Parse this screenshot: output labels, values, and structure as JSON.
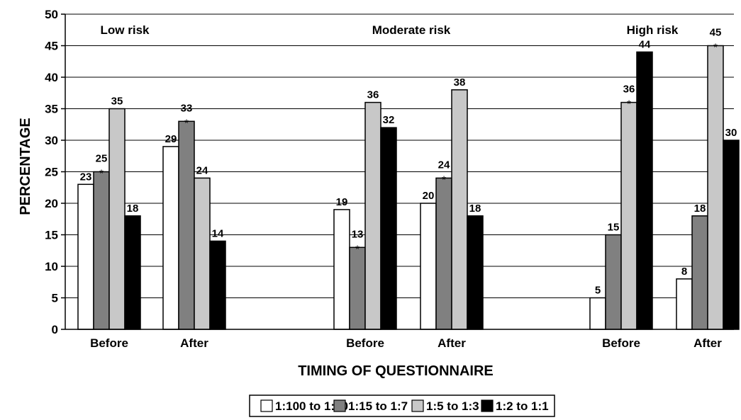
{
  "chart_data": {
    "type": "bar",
    "ylabel": "PERCENTAGE",
    "xlabel": "TIMING OF QUESTIONNAIRE",
    "ylim": [
      0,
      50
    ],
    "yticks": [
      0,
      5,
      10,
      15,
      20,
      25,
      30,
      35,
      40,
      45,
      50
    ],
    "grid": true,
    "legend_position": "bottom",
    "panels": [
      {
        "title": "Low risk",
        "groups": [
          {
            "label": "Before",
            "values": [
              23,
              25,
              35,
              18
            ],
            "stars": [
              false,
              true,
              false,
              false
            ]
          },
          {
            "label": "After",
            "values": [
              29,
              33,
              24,
              14
            ],
            "stars": [
              false,
              true,
              false,
              false
            ]
          }
        ]
      },
      {
        "title": "Moderate risk",
        "groups": [
          {
            "label": "Before",
            "values": [
              19,
              13,
              36,
              32
            ],
            "stars": [
              false,
              true,
              false,
              false
            ]
          },
          {
            "label": "After",
            "values": [
              20,
              24,
              38,
              18
            ],
            "stars": [
              false,
              true,
              false,
              false
            ]
          }
        ]
      },
      {
        "title": "High risk",
        "groups": [
          {
            "label": "Before",
            "values": [
              5,
              15,
              36,
              44
            ],
            "stars": [
              false,
              false,
              true,
              false
            ]
          },
          {
            "label": "After",
            "values": [
              8,
              18,
              45,
              30
            ],
            "stars": [
              false,
              false,
              true,
              false
            ]
          }
        ]
      }
    ],
    "series": [
      {
        "name": "1:100 to 1:20",
        "color": "#ffffff"
      },
      {
        "name": "1:15 to 1:7",
        "color": "#808080"
      },
      {
        "name": "1:5 to 1:3",
        "color": "#c8c8c8"
      },
      {
        "name": "1:2 to 1:1",
        "color": "#000000"
      }
    ],
    "star_symbol": "*"
  }
}
